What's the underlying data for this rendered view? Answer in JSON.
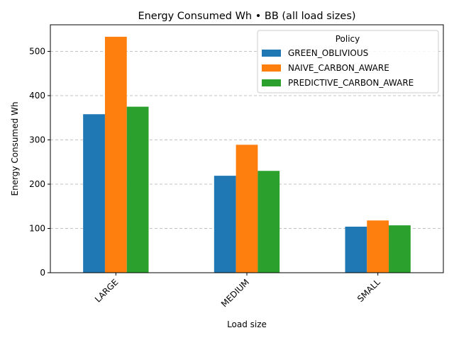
{
  "chart_data": {
    "type": "bar",
    "title": "Energy Consumed Wh • BB (all load sizes)",
    "xlabel": "Load size",
    "ylabel": "Energy Consumed Wh",
    "categories": [
      "LARGE",
      "MEDIUM",
      "SMALL"
    ],
    "series": [
      {
        "name": "GREEN_OBLIVIOUS",
        "color": "#1f77b4",
        "values": [
          358,
          219,
          104
        ]
      },
      {
        "name": "NAIVE_CARBON_AWARE",
        "color": "#ff7f0e",
        "values": [
          533,
          289,
          118
        ]
      },
      {
        "name": "PREDICTIVE_CARBON_AWARE",
        "color": "#2ca02c",
        "values": [
          375,
          230,
          107
        ]
      }
    ],
    "ylim": [
      0,
      560
    ],
    "yticks": [
      0,
      100,
      200,
      300,
      400,
      500
    ],
    "grid": "y-dashed",
    "legend": {
      "title": "Policy",
      "placement": "top-right"
    }
  }
}
